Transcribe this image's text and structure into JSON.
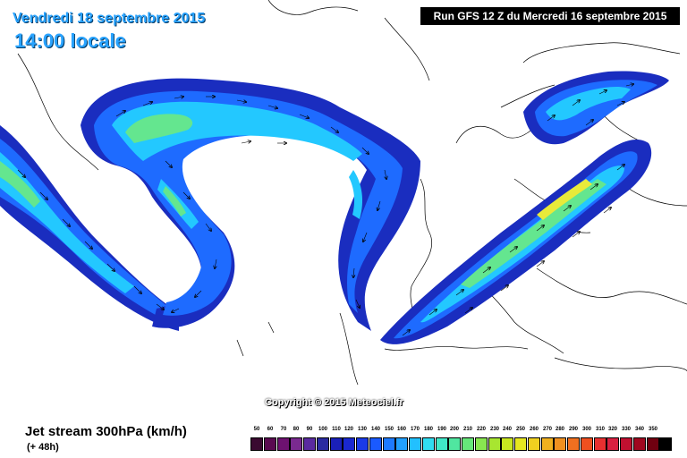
{
  "header": {
    "date": "Vendredi 18 septembre 2015",
    "time": "14:00 locale",
    "run": "Run GFS 12 Z du Mercredi 16 septembre 2015"
  },
  "footer": {
    "copyright": "Copyright © 2015 Meteociel.fr",
    "legend_title": "Jet stream 300hPa (km/h)",
    "legend_subtitle": "(+ 48h)"
  },
  "colors": {
    "title": "#29a3ff",
    "run_box": "#000000",
    "jet_outer": "#1a2dbf",
    "jet_mid": "#1e6bff",
    "jet_inner": "#23c8ff",
    "jet_core": "#64e68f",
    "jet_max": "#e8ea3a"
  },
  "scale": [
    {
      "value": "50",
      "color": "#3a0a30"
    },
    {
      "value": "60",
      "color": "#5a0a50"
    },
    {
      "value": "70",
      "color": "#6e1270"
    },
    {
      "value": "80",
      "color": "#7a2a90"
    },
    {
      "value": "90",
      "color": "#5a2aa0"
    },
    {
      "value": "100",
      "color": "#2a2aa0"
    },
    {
      "value": "110",
      "color": "#1a20b8"
    },
    {
      "value": "120",
      "color": "#1a28d0"
    },
    {
      "value": "130",
      "color": "#1a3ae8"
    },
    {
      "value": "140",
      "color": "#1a5aff"
    },
    {
      "value": "150",
      "color": "#1e7aff"
    },
    {
      "value": "160",
      "color": "#22a0ff"
    },
    {
      "value": "170",
      "color": "#22c0ff"
    },
    {
      "value": "180",
      "color": "#30dcf0"
    },
    {
      "value": "190",
      "color": "#40e8c8"
    },
    {
      "value": "200",
      "color": "#50e6a0"
    },
    {
      "value": "210",
      "color": "#66e67a"
    },
    {
      "value": "220",
      "color": "#88e650"
    },
    {
      "value": "230",
      "color": "#a8e630"
    },
    {
      "value": "240",
      "color": "#c8e620"
    },
    {
      "value": "250",
      "color": "#e6e620"
    },
    {
      "value": "260",
      "color": "#f0d020"
    },
    {
      "value": "270",
      "color": "#f0b020"
    },
    {
      "value": "280",
      "color": "#f09020"
    },
    {
      "value": "290",
      "color": "#f07020"
    },
    {
      "value": "300",
      "color": "#f05020"
    },
    {
      "value": "310",
      "color": "#e83030"
    },
    {
      "value": "320",
      "color": "#d82040"
    },
    {
      "value": "330",
      "color": "#c01030"
    },
    {
      "value": "340",
      "color": "#a00820"
    },
    {
      "value": "350",
      "color": "#700010"
    },
    {
      "value": "",
      "color": "#000000"
    }
  ]
}
